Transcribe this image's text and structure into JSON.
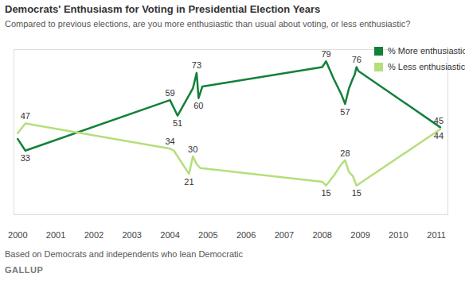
{
  "chart_data": {
    "type": "line",
    "title": "Democrats' Enthusiasm for Voting in Presidential Election Years",
    "subtitle": "Compared to previous elections, are you more enthusiastic than usual about voting, or less enthusiastic?",
    "caption": "Based on Democrats and independents who lean Democratic",
    "source": "GALLUP",
    "xlim": [
      1999.9,
      2011.3
    ],
    "xticks": [
      2000,
      2001,
      2002,
      2003,
      2004,
      2005,
      2006,
      2007,
      2008,
      2009,
      2010,
      2011
    ],
    "ylim": [
      0,
      85
    ],
    "tick_labels": "x",
    "legend": "top-right",
    "data_labels": true,
    "series": [
      {
        "name": "% More enthusiastic",
        "color": "#13803a",
        "x": [
          2000.0,
          2000.2,
          2004.0,
          2004.2,
          2004.6,
          2004.7,
          2004.75,
          2004.8,
          2004.85,
          2008.0,
          2008.1,
          2008.3,
          2008.5,
          2008.6,
          2008.7,
          2008.8,
          2008.85,
          2008.9,
          2008.95,
          2011.1
        ],
        "values": [
          39,
          33,
          59,
          51,
          65,
          73,
          60,
          63,
          66,
          76,
          79,
          70,
          62,
          57,
          65,
          70,
          72,
          76,
          74,
          45
        ],
        "value_labels": [
          null,
          "33",
          "59",
          "51",
          null,
          "73",
          "60",
          null,
          null,
          null,
          "79",
          null,
          null,
          "57",
          null,
          null,
          null,
          "76",
          null,
          "45"
        ]
      },
      {
        "name": "% Less enthusiastic",
        "color": "#b4df7c",
        "x": [
          2000.0,
          2000.2,
          2004.0,
          2004.1,
          2004.5,
          2004.6,
          2004.7,
          2004.8,
          2008.0,
          2008.1,
          2008.3,
          2008.5,
          2008.6,
          2008.7,
          2008.8,
          2008.9,
          2011.1
        ],
        "values": [
          42,
          47,
          34,
          33,
          21,
          30,
          26,
          24,
          17,
          15,
          20,
          26,
          28,
          22,
          20,
          15,
          44
        ],
        "value_labels": [
          null,
          "47",
          "34",
          null,
          "21",
          "30",
          null,
          null,
          null,
          "15",
          null,
          null,
          "28",
          null,
          null,
          "15",
          "44"
        ]
      }
    ]
  }
}
